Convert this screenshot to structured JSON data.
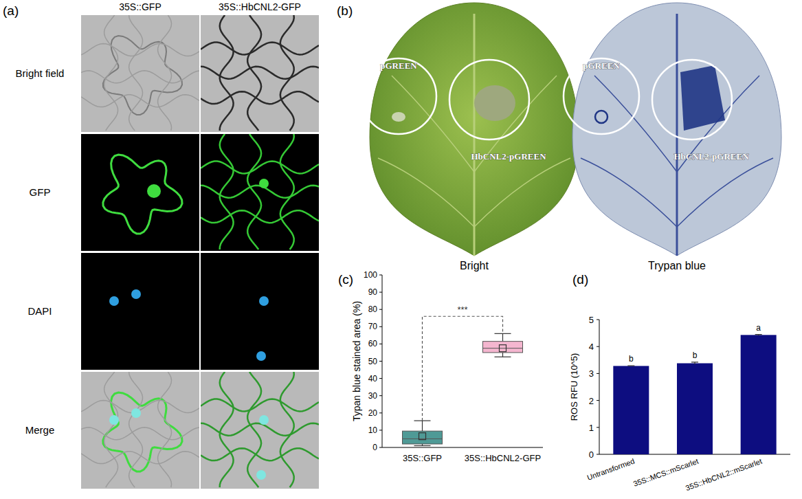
{
  "figure": {
    "panel_labels": [
      "(a)",
      "(b)",
      "(c)",
      "(d)"
    ],
    "a": {
      "columns": [
        "35S::GFP",
        "35S::HbCNL2-GFP"
      ],
      "rows": [
        "Bright field",
        "GFP",
        "DAPI",
        "Merge"
      ]
    },
    "b": {
      "images": [
        {
          "caption": "Bright",
          "spots": [
            "pGREEN",
            "HbCNL2-pGREEN"
          ]
        },
        {
          "caption": "Trypan blue",
          "spots": [
            "pGREEN",
            "HbCNL2-pGREEN"
          ]
        }
      ]
    }
  },
  "chart_data": [
    {
      "type": "box",
      "y_label": "Typan blue stained area (%)",
      "categories": [
        "35S::GFP",
        "35S::HbCNL2-GFP"
      ],
      "min": [
        1,
        52.5
      ],
      "q1": [
        2,
        55
      ],
      "median": [
        5,
        57.5
      ],
      "q3": [
        9.5,
        61.5
      ],
      "max": [
        15.5,
        66
      ],
      "mean": [
        6.5,
        57.5
      ],
      "colors": [
        "#4f9a96",
        "#f4b6cf"
      ],
      "annotations": [
        {
          "label": "***",
          "y": 76
        }
      ],
      "ylim": [
        0,
        100
      ],
      "yticks": [
        0,
        10,
        20,
        30,
        40,
        50,
        60,
        70,
        80,
        90,
        100
      ]
    },
    {
      "type": "bar",
      "y_label": "ROS RFU (10^5)",
      "categories": [
        "Untransformed",
        "35S::MCS::mScarlet",
        "35S::HbCNL2::mScarlet"
      ],
      "values": [
        3.28,
        3.38,
        4.43
      ],
      "errors": [
        0.01,
        0.04,
        0.02
      ],
      "annotations": [
        "b",
        "b",
        "a"
      ],
      "color": "#0d0d80",
      "ylim": [
        0,
        5
      ],
      "yticks": [
        0,
        1,
        2,
        3,
        4,
        5
      ]
    }
  ]
}
